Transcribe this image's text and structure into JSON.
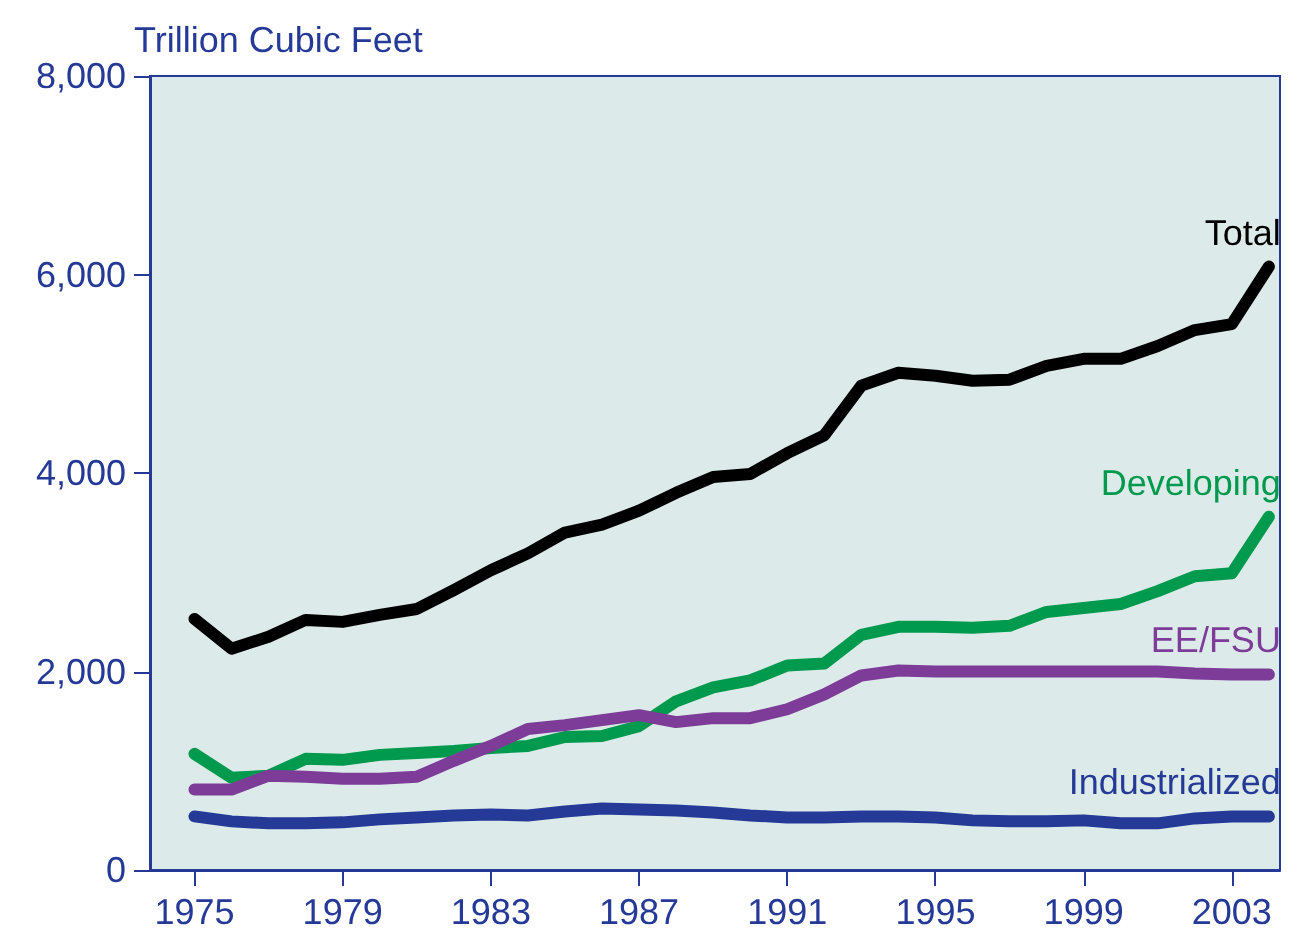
{
  "chart_data": {
    "type": "line",
    "ylabel": "Trillion Cubic Feet",
    "x": [
      1975,
      1976,
      1977,
      1978,
      1979,
      1980,
      1981,
      1982,
      1983,
      1984,
      1985,
      1986,
      1987,
      1988,
      1989,
      1990,
      1991,
      1992,
      1993,
      1994,
      1995,
      1996,
      1997,
      1998,
      1999,
      2000,
      2001,
      2002,
      2003,
      2004
    ],
    "series": [
      {
        "name": "Total",
        "color": "#000000",
        "values": [
          2530,
          2230,
          2350,
          2520,
          2500,
          2570,
          2630,
          2820,
          3020,
          3190,
          3400,
          3480,
          3620,
          3800,
          3960,
          3990,
          4200,
          4380,
          4880,
          5010,
          4980,
          4930,
          4940,
          5080,
          5150,
          5150,
          5280,
          5440,
          5500,
          6080
        ]
      },
      {
        "name": "Developing",
        "color": "#009a4e",
        "values": [
          1170,
          930,
          950,
          1120,
          1110,
          1160,
          1180,
          1200,
          1230,
          1250,
          1340,
          1350,
          1450,
          1700,
          1840,
          1910,
          2060,
          2080,
          2370,
          2450,
          2450,
          2440,
          2460,
          2600,
          2640,
          2680,
          2810,
          2960,
          2990,
          3560
        ]
      },
      {
        "name": "EE/FSU",
        "color": "#7d3c98",
        "values": [
          810,
          810,
          950,
          940,
          920,
          920,
          940,
          1100,
          1250,
          1420,
          1460,
          1510,
          1560,
          1490,
          1530,
          1530,
          1620,
          1770,
          1960,
          2010,
          2000,
          2000,
          2000,
          2000,
          2000,
          2000,
          2000,
          1980,
          1970,
          1970
        ]
      },
      {
        "name": "Industrialized",
        "color": "#253a97",
        "values": [
          540,
          490,
          470,
          470,
          480,
          510,
          530,
          550,
          560,
          550,
          590,
          620,
          610,
          600,
          580,
          550,
          530,
          530,
          540,
          540,
          530,
          500,
          490,
          490,
          500,
          470,
          470,
          520,
          540,
          540
        ]
      }
    ],
    "xlim": [
      1973.8,
      2004.3
    ],
    "xticks": [
      1975,
      1979,
      1983,
      1987,
      1991,
      1995,
      1999,
      2003
    ],
    "ylim": [
      0,
      8000
    ],
    "yticks": [
      0,
      {
        "value": 2000,
        "label": "2,000"
      },
      {
        "value": 4000,
        "label": "4,000"
      },
      {
        "value": 6000,
        "label": "6,000"
      },
      {
        "value": 8000,
        "label": "8,000"
      }
    ],
    "grid": false,
    "legend": false,
    "marker": "none",
    "line_style": "solid"
  }
}
